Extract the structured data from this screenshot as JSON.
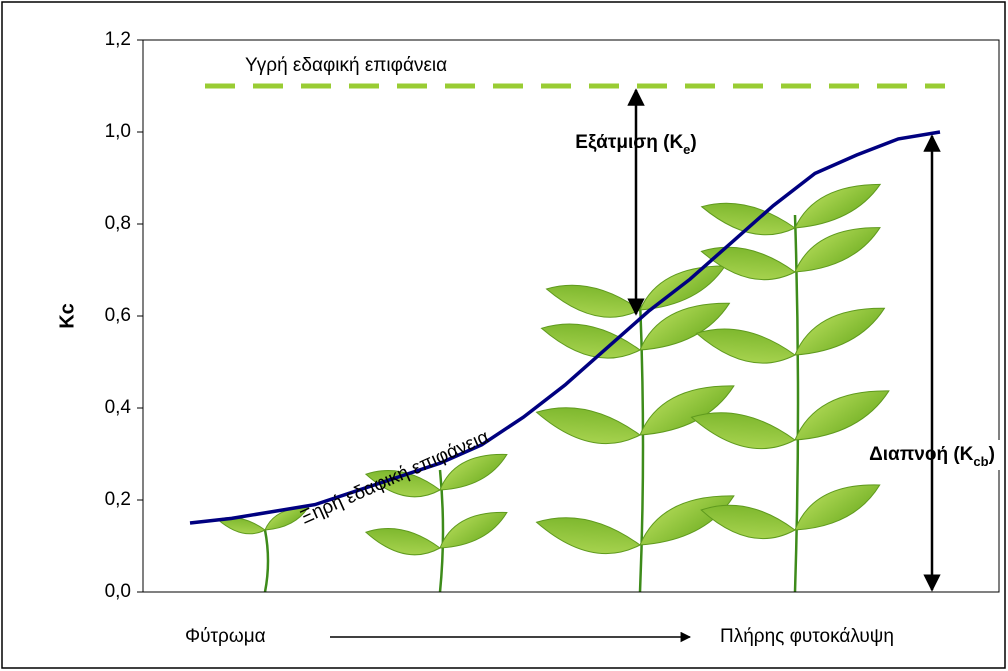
{
  "chart_data": {
    "type": "line",
    "y_label": "Kc",
    "categories": [
      null,
      null,
      null,
      null,
      null,
      null,
      null,
      null,
      null,
      null,
      null,
      null,
      null,
      null,
      null,
      null,
      null,
      null,
      null
    ],
    "series": [
      {
        "color": "#000080",
        "values": [
          0.15,
          0.16,
          0.175,
          0.19,
          0.22,
          0.25,
          0.28,
          0.32,
          0.38,
          0.45,
          0.53,
          0.61,
          0.68,
          0.76,
          0.84,
          0.91,
          0.95,
          0.985,
          1.0
        ]
      }
    ],
    "reference_line": {
      "value": 1.1,
      "color": "#99cc33",
      "label": "Υγρή εδαφική επιφάνεια",
      "label_color": "#0000cc"
    },
    "curve_label": {
      "text": "Ξηρή εδαφική επιφάνεια",
      "color": "#ff6600"
    },
    "evaporation": {
      "text": "Εξάτμιση (K",
      "sub": "e",
      "end": ")",
      "from": 1.1,
      "to": 0.6
    },
    "transpiration": {
      "text": "Διαπνοή (K",
      "sub": "cb",
      "end": ")",
      "from": 1.0,
      "to": 0.0
    },
    "x_start_label": "Φύτρωμα",
    "x_end_label": "Πλήρης φυτοκάλυψη",
    "ylim": [
      0,
      1.2
    ],
    "yticks": [
      {
        "value": 0,
        "label": "0,0"
      },
      {
        "value": 0.2,
        "label": "0,2"
      },
      {
        "value": 0.4,
        "label": "0,4"
      },
      {
        "value": 0.6,
        "label": "0,6"
      },
      {
        "value": 0.8,
        "label": "0,8"
      },
      {
        "value": 1.0,
        "label": "1,0"
      },
      {
        "value": 1.2,
        "label": "1,2"
      }
    ]
  }
}
